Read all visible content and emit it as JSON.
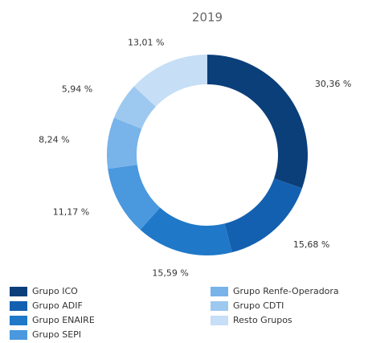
{
  "chart_data": {
    "type": "donut",
    "title": "2019",
    "categories": [
      "Grupo ICO",
      "Grupo ADIF",
      "Grupo ENAIRE",
      "Grupo SEPI",
      "Grupo Renfe-Operadora",
      "Grupo CDTI",
      "Resto Grupos"
    ],
    "values": [
      30.36,
      15.68,
      15.59,
      11.17,
      8.24,
      5.94,
      13.01
    ],
    "value_labels": [
      "30,36 %",
      "15,68 %",
      "15,59 %",
      "11,17 %",
      "8,24 %",
      "5,94 %",
      "13,01 %"
    ],
    "colors": [
      "#0b3f7a",
      "#1460b0",
      "#1f78c8",
      "#4a98de",
      "#78b3ea",
      "#9dc9f0",
      "#c6def6"
    ],
    "legend": "bottom"
  }
}
